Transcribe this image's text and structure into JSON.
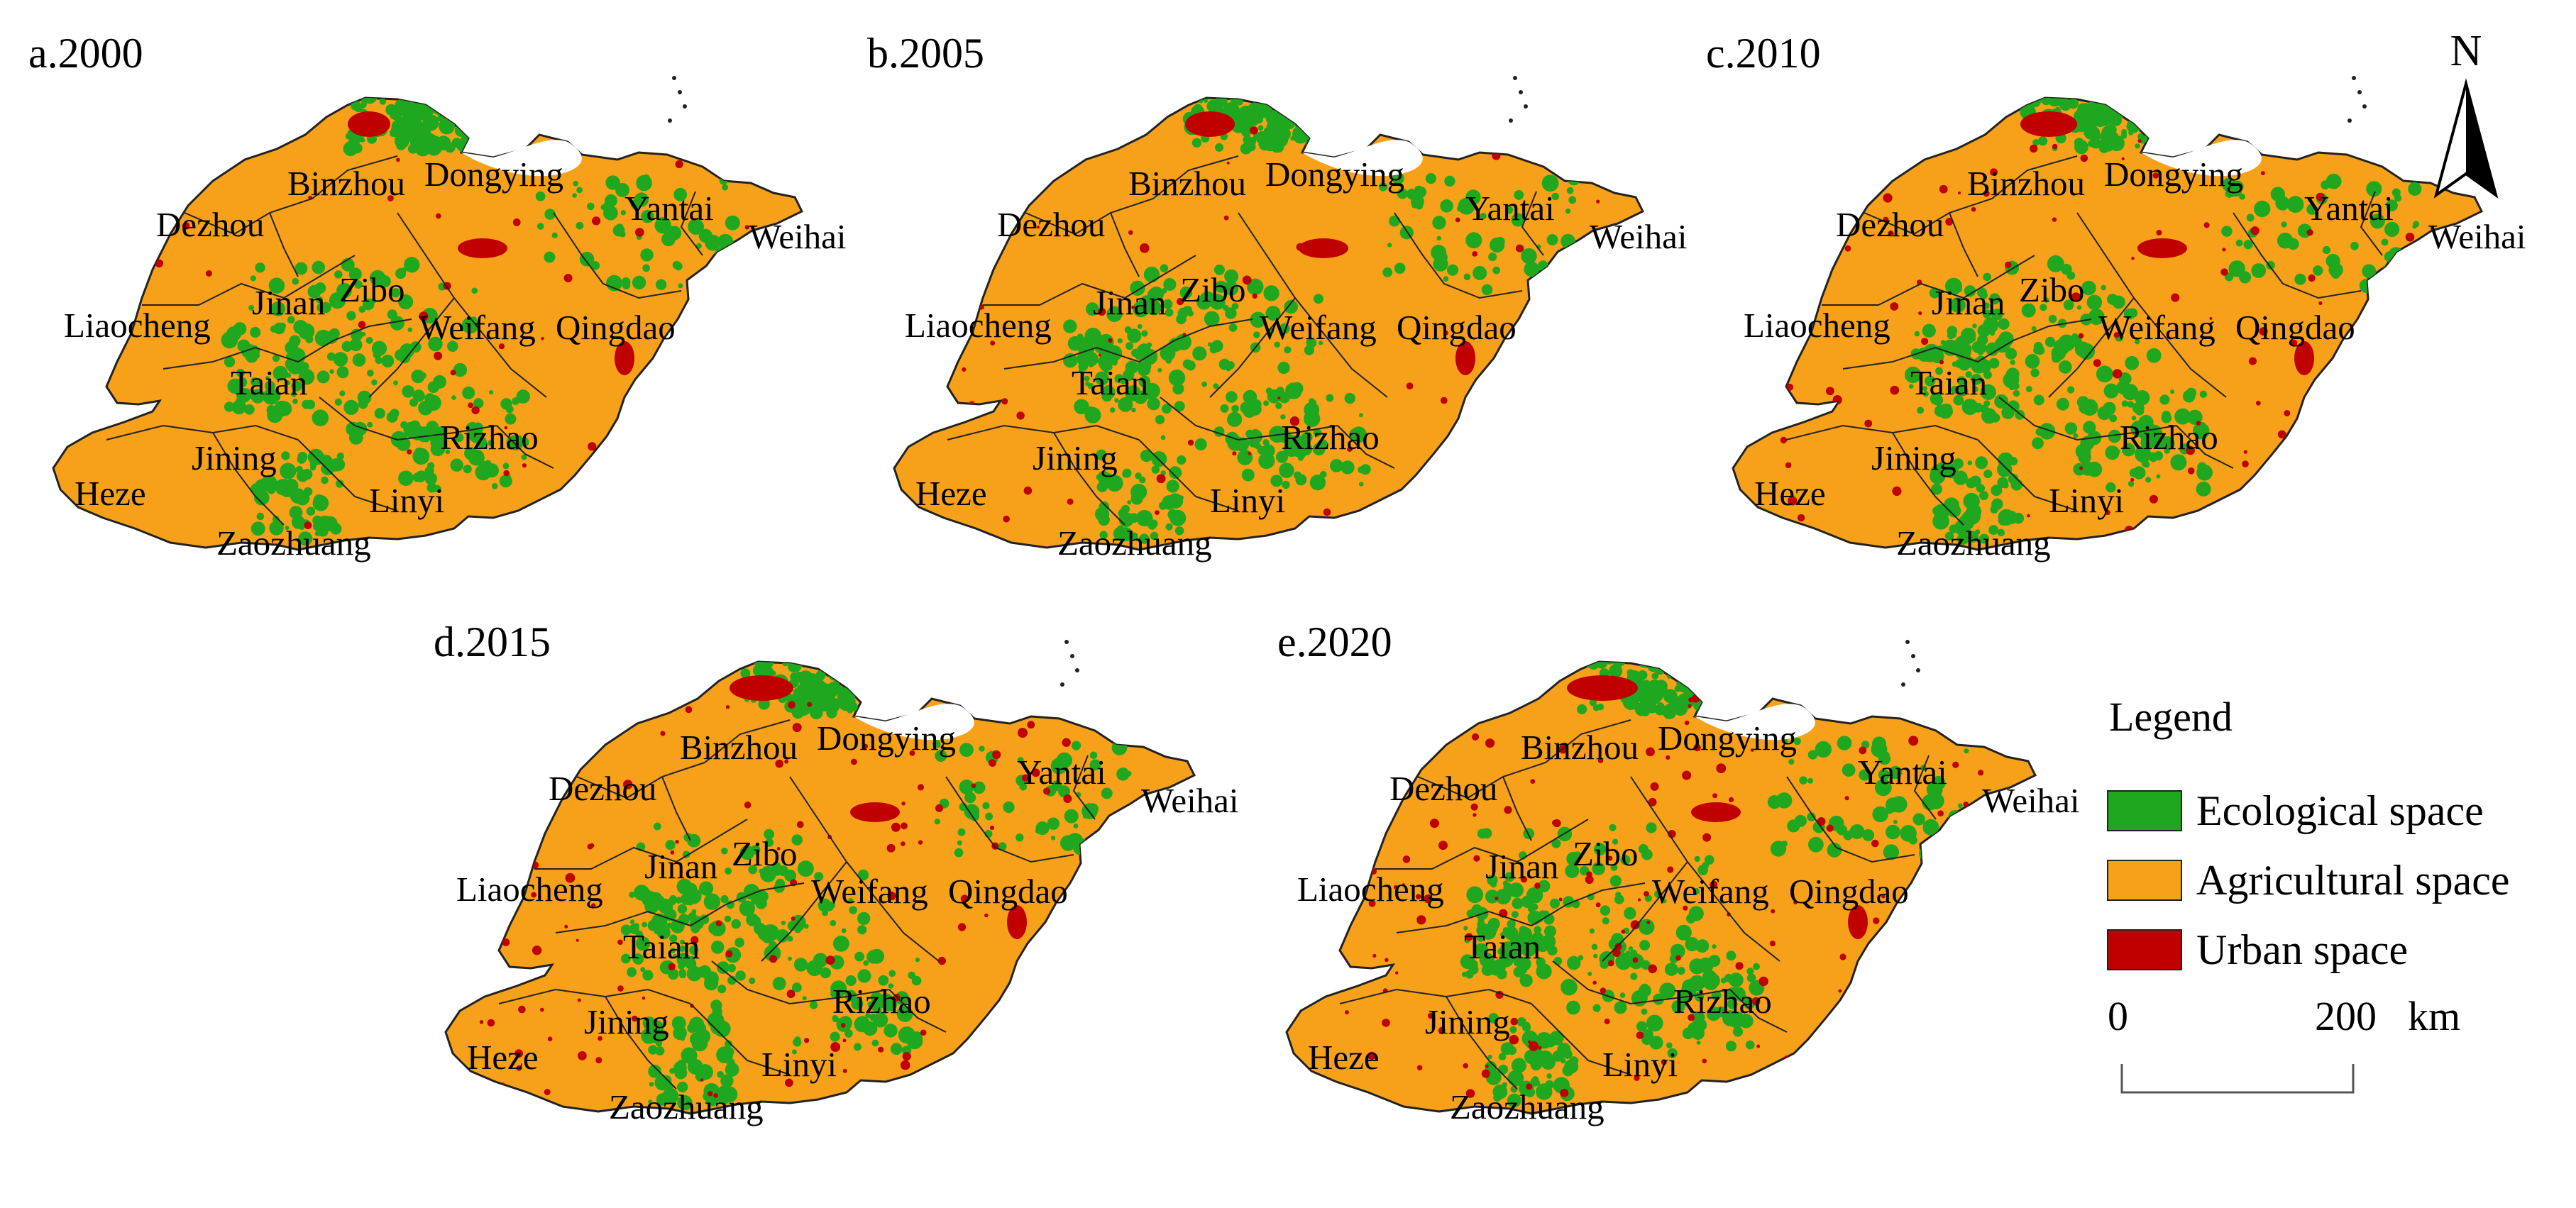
{
  "panels": [
    {
      "label": "a.2000"
    },
    {
      "label": "b.2005"
    },
    {
      "label": "c.2010"
    },
    {
      "label": "d.2015"
    },
    {
      "label": "e.2020"
    }
  ],
  "cities": {
    "binzhou": "Binzhou",
    "dongying": "Dongying",
    "dezhou": "Dezhou",
    "yantai": "Yantai",
    "weihai": "Weihai",
    "zibo": "Zibo",
    "jinan": "Jinan",
    "liaocheng": "Liaocheng",
    "weifang": "Weifang",
    "qingdao": "Qingdao",
    "taian": "Taian",
    "rizhao": "Rizhao",
    "jining": "Jining",
    "heze": "Heze",
    "linyi": "Linyi",
    "zaozhuang": "Zaozhuang"
  },
  "north_arrow": {
    "letter": "N"
  },
  "legend": {
    "title": "Legend",
    "items": [
      {
        "label": "Ecological space",
        "color": "#1fa81f"
      },
      {
        "label": "Agricultural space",
        "color": "#f7a11a"
      },
      {
        "label": "Urban space",
        "color": "#c00000"
      }
    ]
  },
  "scale_bar": {
    "start": "0",
    "end": "200",
    "unit": "km"
  },
  "colors": {
    "agricultural": "#f7a11a",
    "ecological": "#1fa81f",
    "urban": "#c00000",
    "boundary": "#222222"
  }
}
